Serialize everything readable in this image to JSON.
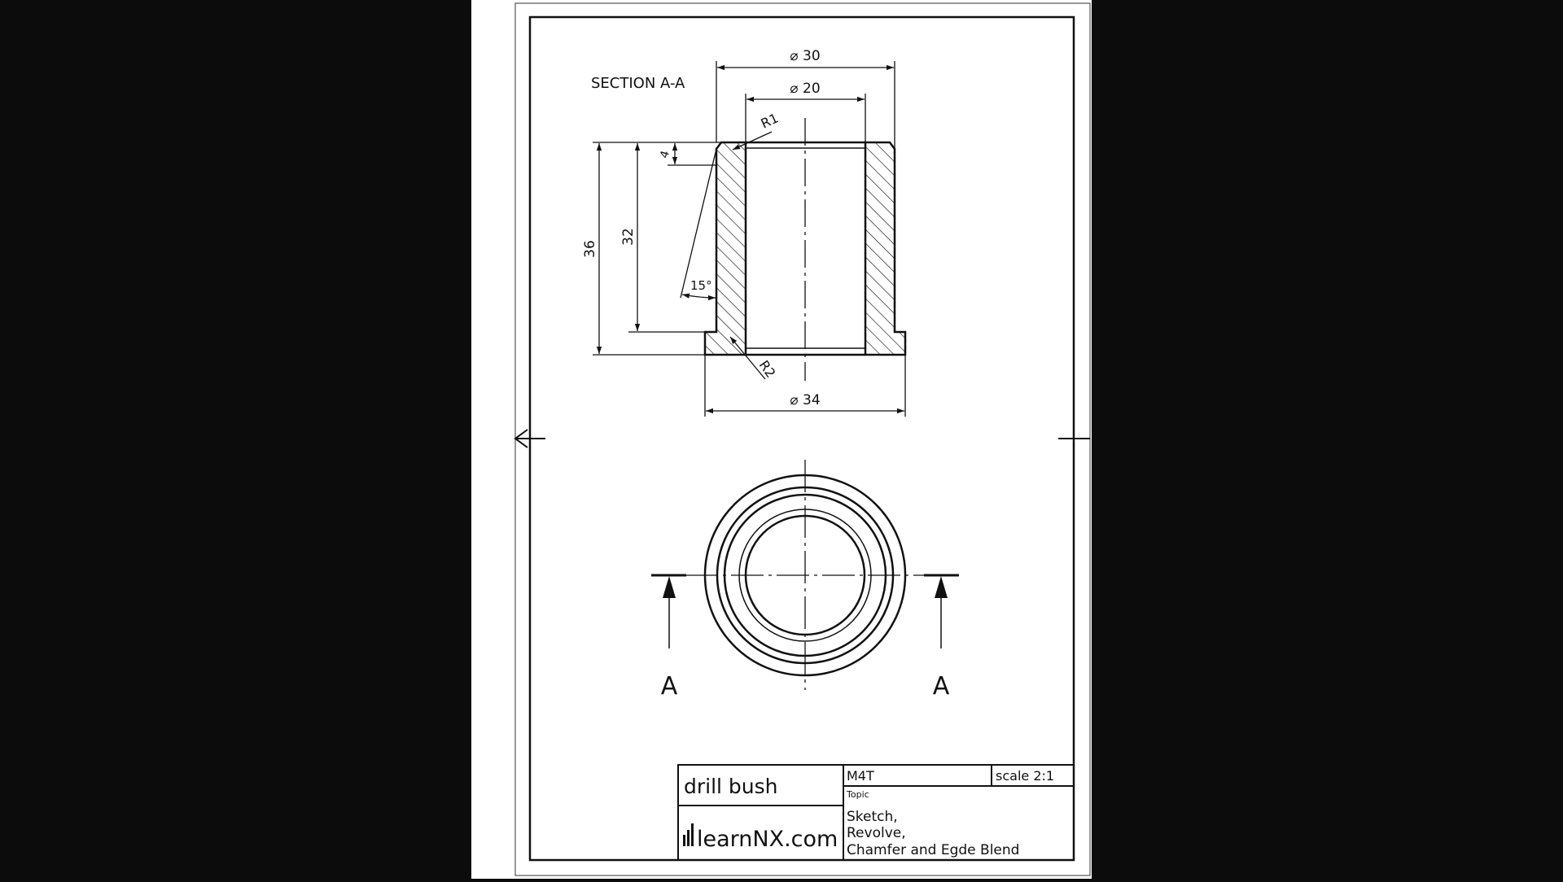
{
  "drawing": {
    "section_title": "SECTION A-A",
    "dimensions": {
      "dia_outer": "⌀ 30",
      "dia_inner": "⌀ 20",
      "dia_flange": "⌀ 34",
      "height_total": "36",
      "height_body": "32",
      "chamfer_len": "4",
      "angle": "15°",
      "radius_top": "R1",
      "radius_bottom": "R2"
    },
    "section_marks": [
      "A",
      "A"
    ]
  },
  "title_block": {
    "part_name": "drill  bush",
    "logo_text": "learnNX.com",
    "code": "M4T",
    "scale": "scale  2:1",
    "topic_label": "Topic",
    "topic_lines": [
      "Sketch,",
      "Revolve,",
      "Chamfer  and  Egde  Blend"
    ]
  },
  "colors": {
    "background": "#0c0c0c",
    "paper": "#ffffff",
    "ink": "#111111"
  },
  "icons": [
    "direction-arrow-icon",
    "logo-bars-icon"
  ]
}
